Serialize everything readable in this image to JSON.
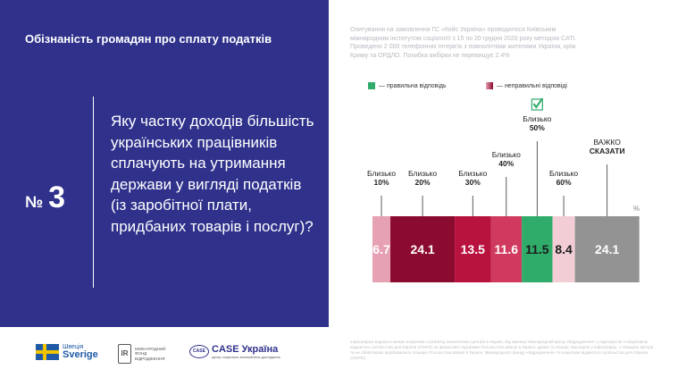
{
  "header": {
    "title": "Обізнаність громадян про сплату податків"
  },
  "question": {
    "number_prefix": "№",
    "number": "3",
    "text": "Яку частку доходів більшість українських працівників сплачують на утримання держави у вигляді податків (із заробітної плати, придбаних товарів і послуг)?"
  },
  "methodology": "Опитування на замовлення ГС «Кейс Україна» проводилося Київським міжнародним інститутом соціології з 15 по 20 грудня 2020 року методом CATI. Проведено 2 000 телефонних інтерв'ю з повнолітніми жителями України, крім Криму та ОРДЛО. Похибка вибірки не перевищує 2.4%",
  "legend": {
    "correct_label": "— правильна відповідь",
    "incorrect_label": "— неправильні відповіді",
    "correct_color": "#2fac6a",
    "incorrect_gradient": [
      "#e7a1b4",
      "#8b0a2f"
    ]
  },
  "logos": {
    "sweden_small": "Швеція",
    "sweden_big": "Sverige",
    "irf_mark": "IR",
    "irf_text": "МІЖНАРОДНИЙ ФОНД ВІДРОДЖЕННЯ",
    "case_mark": "CASE",
    "case_name": "CASE Україна",
    "case_sub": "центр соціально-економічних досліджень"
  },
  "footer": "Інфографіка видана в межах Ініціативи з розвитку аналітичних центрів в Україні, яку виконує Міжнародний фонд «Відродження» у партнерстві з Ініціативою відкритого суспільства для Європи (OSIFE) за фінансової підтримки Посольства Швеції в Україні. Думки та позиції, викладені у інфографіці, є позицією автора та не обов'язково відображають позицію Посольства Швеції в Україні, Міжнародного фонду «Відродження» та Ініціативи відкритого суспільства для Європи (OSIFE).",
  "chart_data": {
    "type": "bar",
    "unit": "%",
    "categories": [
      "Близько 10%",
      "Близько 20%",
      "Близько 30%",
      "Близько 40%",
      "Близько 50%",
      "Близько 60%",
      "ВАЖКО СКАЗАТИ"
    ],
    "label_lines": [
      [
        "Близько",
        "10%"
      ],
      [
        "Близько",
        "20%"
      ],
      [
        "Близько",
        "30%"
      ],
      [
        "Близько",
        "40%"
      ],
      [
        "Близько",
        "50%"
      ],
      [
        "Близько",
        "60%"
      ],
      [
        "ВАЖКО",
        "СКАЗАТИ"
      ]
    ],
    "values": [
      6.7,
      24.1,
      13.5,
      11.6,
      11.5,
      8.4,
      24.1
    ],
    "value_labels": [
      "6.7",
      "24.1",
      "13.5",
      "11.6",
      "11.5",
      "8.4",
      "24.1"
    ],
    "colors": [
      "#e7a1b4",
      "#8b0a2f",
      "#b8123f",
      "#d03a5e",
      "#2fac6a",
      "#f3cdd6",
      "#939393"
    ],
    "value_text_colors": [
      "#ffffff",
      "#ffffff",
      "#ffffff",
      "#ffffff",
      "#1a1a1a",
      "#1a1a1a",
      "#ffffff"
    ],
    "correct_index": 4,
    "stacked_total": 100
  }
}
